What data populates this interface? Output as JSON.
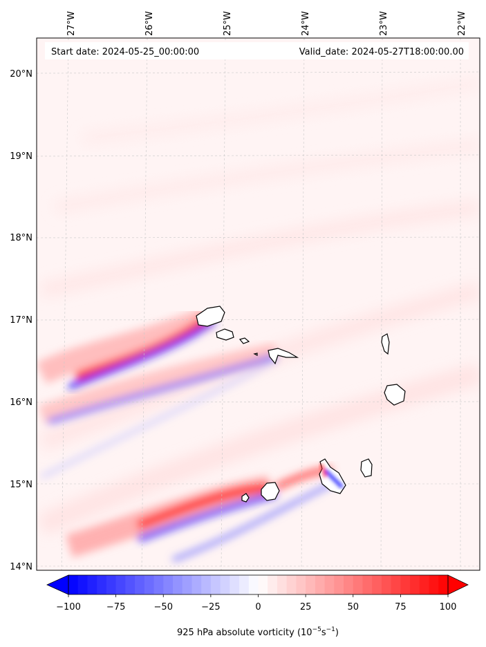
{
  "map": {
    "start_date": "Start date: 2024-05-25_00:00:00",
    "valid_date": "Valid_date: 2024-05-27T18:00:00.00",
    "lon_labels": [
      "27°W",
      "26°W",
      "25°W",
      "24°W",
      "23°W",
      "22°W"
    ],
    "lat_labels": [
      "20°N",
      "19°N",
      "18°N",
      "17°N",
      "16°N",
      "15°N",
      "14°N"
    ],
    "lon_values": [
      -27,
      -26,
      -25,
      -24,
      -23,
      -22
    ],
    "lat_values": [
      20,
      19,
      18,
      17,
      16,
      15,
      14
    ],
    "extent": {
      "lon_min": -27.4,
      "lon_max": -21.75,
      "lat_min": 13.95,
      "lat_max": 20.45
    },
    "gridlines": true
  },
  "colorbar": {
    "ticks": [
      "−100",
      "−75",
      "−50",
      "−25",
      "0",
      "25",
      "50",
      "75",
      "100"
    ],
    "tick_values": [
      -100,
      -75,
      -50,
      -25,
      0,
      25,
      50,
      75,
      100
    ],
    "range": [
      -100,
      100
    ],
    "extend": "both",
    "label_main": "925 hPa absolute vorticity (10",
    "label_exp1": "−5",
    "label_mid": "s",
    "label_exp2": "−1",
    "label_end": ")",
    "colormap": "bwr",
    "color_min": "#0000ff",
    "color_mid": "#ffffff",
    "color_max": "#ff0000"
  },
  "islands": [
    "Santo Antão",
    "São Vicente",
    "Santa Luzia",
    "São Nicolau",
    "Sal",
    "Boa Vista",
    "Santiago",
    "Fogo",
    "Brava",
    "Maio"
  ]
}
